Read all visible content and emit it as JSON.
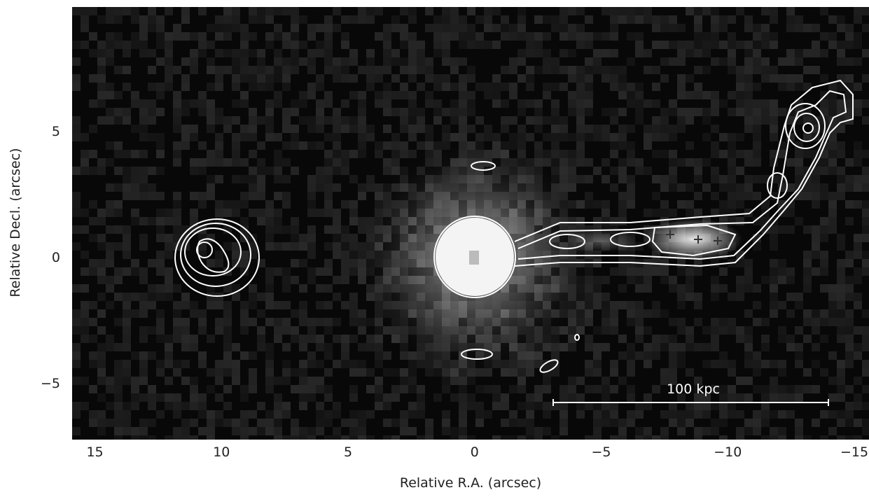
{
  "chart_data": {
    "type": "image",
    "xlabel": "Relative R.A. (arcsec)",
    "ylabel": "Relative Decl. (arcsec)",
    "annotation": "100 kpc",
    "xlim": [
      15.9,
      -15.58
    ],
    "ylim": [
      -7.25,
      9.92
    ],
    "xticks": [
      15,
      10,
      5,
      0,
      {
        "value": -5,
        "label": "−5"
      },
      {
        "value": -10,
        "label": "−10"
      },
      {
        "value": -15,
        "label": "−15"
      }
    ],
    "yticks": [
      {
        "value": -5,
        "label": "−5"
      },
      0,
      5
    ]
  }
}
